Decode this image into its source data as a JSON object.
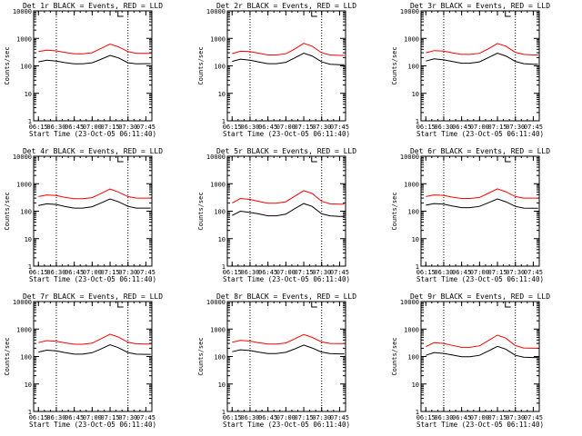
{
  "colors": {
    "events": "#000000",
    "lld": "#ff0000",
    "frame": "#000000",
    "background": "#ffffff"
  },
  "chart_data": [
    {
      "type": "line",
      "title": "Det 1r BLACK = Events, RED = LLD",
      "xlabel": "Start Time (23-Oct-05 06:11:40)",
      "ylabel": "Counts/sec",
      "x_ticks": [
        "06:15",
        "06:30",
        "06:45",
        "07:00",
        "07:15",
        "07:30",
        "07:45"
      ],
      "y_ticks": [
        "1",
        "10",
        "100",
        "1000",
        "10000"
      ],
      "y_scale": "log",
      "ylim": [
        1,
        10000
      ],
      "vlines": [
        "06:30",
        "07:30"
      ],
      "x": [
        "06:15",
        "06:22",
        "06:30",
        "06:37",
        "06:45",
        "06:52",
        "07:00",
        "07:07",
        "07:15",
        "07:22",
        "07:30",
        "07:37",
        "07:45",
        "07:49"
      ],
      "series": [
        {
          "name": "Events",
          "values": [
            140,
            160,
            148,
            132,
            118,
            118,
            130,
            170,
            240,
            195,
            130,
            118,
            120,
            120
          ]
        },
        {
          "name": "LLD",
          "values": [
            330,
            370,
            350,
            310,
            275,
            275,
            300,
            420,
            620,
            490,
            330,
            285,
            285,
            285
          ]
        }
      ]
    },
    {
      "type": "line",
      "title": "Det 2r BLACK = Events, RED = LLD",
      "xlabel": "Start Time (23-Oct-05 06:11:40)",
      "ylabel": "Counts/sec",
      "x_ticks": [
        "06:15",
        "06:30",
        "06:45",
        "07:00",
        "07:15",
        "07:30",
        "07:45"
      ],
      "y_ticks": [
        "1",
        "10",
        "100",
        "1000",
        "10000"
      ],
      "y_scale": "log",
      "ylim": [
        1,
        10000
      ],
      "vlines": [
        "06:30",
        "07:30"
      ],
      "x": [
        "06:15",
        "06:22",
        "06:30",
        "06:37",
        "06:45",
        "06:52",
        "07:00",
        "07:07",
        "07:15",
        "07:22",
        "07:30",
        "07:37",
        "07:45",
        "07:49"
      ],
      "series": [
        {
          "name": "Events",
          "values": [
            145,
            175,
            160,
            140,
            120,
            120,
            135,
            190,
            290,
            230,
            140,
            115,
            110,
            110
          ]
        },
        {
          "name": "LLD",
          "values": [
            280,
            340,
            330,
            290,
            250,
            250,
            275,
            400,
            660,
            520,
            300,
            250,
            240,
            240
          ]
        }
      ]
    },
    {
      "type": "line",
      "title": "Det 3r BLACK = Events, RED = LLD",
      "xlabel": "Start Time (23-Oct-05 06:11:40)",
      "ylabel": "Counts/sec",
      "x_ticks": [
        "06:15",
        "06:30",
        "06:45",
        "07:00",
        "07:15",
        "07:30",
        "07:45"
      ],
      "y_ticks": [
        "1",
        "10",
        "100",
        "1000",
        "10000"
      ],
      "y_scale": "log",
      "ylim": [
        1,
        10000
      ],
      "vlines": [
        "06:30",
        "07:30"
      ],
      "x": [
        "06:15",
        "06:22",
        "06:30",
        "06:37",
        "06:45",
        "06:52",
        "07:00",
        "07:07",
        "07:15",
        "07:22",
        "07:30",
        "07:37",
        "07:45",
        "07:49"
      ],
      "series": [
        {
          "name": "Events",
          "values": [
            150,
            180,
            165,
            145,
            125,
            125,
            140,
            195,
            290,
            230,
            145,
            120,
            115,
            115
          ]
        },
        {
          "name": "LLD",
          "values": [
            300,
            360,
            345,
            300,
            260,
            260,
            285,
            410,
            650,
            520,
            310,
            260,
            250,
            250
          ]
        }
      ]
    },
    {
      "type": "line",
      "title": "Det 4r BLACK = Events, RED = LLD",
      "xlabel": "Start Time (23-Oct-05 06:11:40)",
      "ylabel": "Counts/sec",
      "x_ticks": [
        "06:15",
        "06:30",
        "06:45",
        "07:00",
        "07:15",
        "07:30",
        "07:45"
      ],
      "y_ticks": [
        "1",
        "10",
        "100",
        "1000",
        "10000"
      ],
      "y_scale": "log",
      "ylim": [
        1,
        10000
      ],
      "vlines": [
        "06:30",
        "07:30"
      ],
      "x": [
        "06:15",
        "06:22",
        "06:30",
        "06:37",
        "06:45",
        "06:52",
        "07:00",
        "07:07",
        "07:15",
        "07:22",
        "07:30",
        "07:37",
        "07:45",
        "07:49"
      ],
      "series": [
        {
          "name": "Events",
          "values": [
            160,
            185,
            175,
            150,
            130,
            130,
            145,
            195,
            280,
            220,
            150,
            130,
            130,
            130
          ]
        },
        {
          "name": "LLD",
          "values": [
            340,
            390,
            370,
            320,
            285,
            285,
            310,
            430,
            640,
            500,
            340,
            300,
            300,
            300
          ]
        }
      ]
    },
    {
      "type": "line",
      "title": "Det 5r BLACK = Events, RED = LLD",
      "xlabel": "Start Time (23-Oct-05 06:11:40)",
      "ylabel": "Counts/sec",
      "x_ticks": [
        "06:15",
        "06:30",
        "06:45",
        "07:00",
        "07:15",
        "07:30",
        "07:45"
      ],
      "y_ticks": [
        "1",
        "10",
        "100",
        "1000",
        "10000"
      ],
      "y_scale": "log",
      "ylim": [
        1,
        10000
      ],
      "vlines": [
        "06:30",
        "07:30"
      ],
      "x": [
        "06:15",
        "06:22",
        "06:30",
        "06:37",
        "06:45",
        "06:52",
        "07:00",
        "07:07",
        "07:15",
        "07:22",
        "07:30",
        "07:37",
        "07:45",
        "07:49"
      ],
      "series": [
        {
          "name": "Events",
          "values": [
            70,
            100,
            90,
            80,
            68,
            68,
            78,
            120,
            190,
            150,
            80,
            68,
            65,
            65
          ]
        },
        {
          "name": "LLD",
          "values": [
            200,
            290,
            270,
            230,
            195,
            195,
            220,
            340,
            560,
            440,
            230,
            185,
            180,
            180
          ]
        }
      ]
    },
    {
      "type": "line",
      "title": "Det 6r BLACK = Events, RED = LLD",
      "xlabel": "Start Time (23-Oct-05 06:11:40)",
      "ylabel": "Counts/sec",
      "x_ticks": [
        "06:15",
        "06:30",
        "06:45",
        "07:00",
        "07:15",
        "07:30",
        "07:45"
      ],
      "y_ticks": [
        "1",
        "10",
        "100",
        "1000",
        "10000"
      ],
      "y_scale": "log",
      "ylim": [
        1,
        10000
      ],
      "vlines": [
        "06:30",
        "07:30"
      ],
      "x": [
        "06:15",
        "06:22",
        "06:30",
        "06:37",
        "06:45",
        "06:52",
        "07:00",
        "07:07",
        "07:15",
        "07:22",
        "07:30",
        "07:37",
        "07:45",
        "07:49"
      ],
      "series": [
        {
          "name": "Events",
          "values": [
            165,
            190,
            180,
            155,
            135,
            135,
            150,
            200,
            280,
            220,
            150,
            130,
            128,
            128
          ]
        },
        {
          "name": "LLD",
          "values": [
            340,
            390,
            375,
            325,
            290,
            290,
            315,
            440,
            650,
            510,
            340,
            300,
            300,
            300
          ]
        }
      ]
    },
    {
      "type": "line",
      "title": "Det 7r BLACK = Events, RED = LLD",
      "xlabel": "Start Time (23-Oct-05 06:11:40)",
      "ylabel": "Counts/sec",
      "x_ticks": [
        "06:15",
        "06:30",
        "06:45",
        "07:00",
        "07:15",
        "07:30",
        "07:45"
      ],
      "y_ticks": [
        "1",
        "10",
        "100",
        "1000",
        "10000"
      ],
      "y_scale": "log",
      "ylim": [
        1,
        10000
      ],
      "vlines": [
        "06:30",
        "07:30"
      ],
      "x": [
        "06:15",
        "06:22",
        "06:30",
        "06:37",
        "06:45",
        "06:52",
        "07:00",
        "07:07",
        "07:15",
        "07:22",
        "07:30",
        "07:37",
        "07:45",
        "07:49"
      ],
      "series": [
        {
          "name": "Events",
          "values": [
            145,
            170,
            160,
            140,
            122,
            122,
            138,
            185,
            270,
            210,
            140,
            122,
            120,
            120
          ]
        },
        {
          "name": "LLD",
          "values": [
            320,
            380,
            360,
            315,
            280,
            280,
            305,
            430,
            650,
            510,
            330,
            290,
            285,
            285
          ]
        }
      ]
    },
    {
      "type": "line",
      "title": "Det 8r BLACK = Events, RED = LLD",
      "xlabel": "Start Time (23-Oct-05 06:11:40)",
      "ylabel": "Counts/sec",
      "x_ticks": [
        "06:15",
        "06:30",
        "06:45",
        "07:00",
        "07:15",
        "07:30",
        "07:45"
      ],
      "y_ticks": [
        "1",
        "10",
        "100",
        "1000",
        "10000"
      ],
      "y_scale": "log",
      "ylim": [
        1,
        10000
      ],
      "vlines": [
        "06:30",
        "07:30"
      ],
      "x": [
        "06:15",
        "06:22",
        "06:30",
        "06:37",
        "06:45",
        "06:52",
        "07:00",
        "07:07",
        "07:15",
        "07:22",
        "07:30",
        "07:37",
        "07:45",
        "07:49"
      ],
      "series": [
        {
          "name": "Events",
          "values": [
            150,
            175,
            165,
            145,
            128,
            128,
            142,
            185,
            260,
            205,
            145,
            128,
            125,
            125
          ]
        },
        {
          "name": "LLD",
          "values": [
            330,
            385,
            365,
            320,
            285,
            285,
            310,
            430,
            630,
            500,
            340,
            300,
            295,
            295
          ]
        }
      ]
    },
    {
      "type": "line",
      "title": "Det 9r BLACK = Events, RED = LLD",
      "xlabel": "Start Time (23-Oct-05 06:11:40)",
      "ylabel": "Counts/sec",
      "x_ticks": [
        "06:15",
        "06:30",
        "06:45",
        "07:00",
        "07:15",
        "07:30",
        "07:45"
      ],
      "y_ticks": [
        "1",
        "10",
        "100",
        "1000",
        "10000"
      ],
      "y_scale": "log",
      "ylim": [
        1,
        10000
      ],
      "vlines": [
        "06:30",
        "07:30"
      ],
      "x": [
        "06:15",
        "06:22",
        "06:30",
        "06:37",
        "06:45",
        "06:52",
        "07:00",
        "07:07",
        "07:15",
        "07:22",
        "07:30",
        "07:37",
        "07:45",
        "07:49"
      ],
      "series": [
        {
          "name": "Events",
          "values": [
            110,
            140,
            130,
            115,
            98,
            98,
            110,
            155,
            235,
            185,
            110,
            95,
            92,
            92
          ]
        },
        {
          "name": "LLD",
          "values": [
            230,
            320,
            300,
            255,
            215,
            215,
            245,
            370,
            600,
            470,
            250,
            205,
            200,
            200
          ]
        }
      ]
    }
  ]
}
